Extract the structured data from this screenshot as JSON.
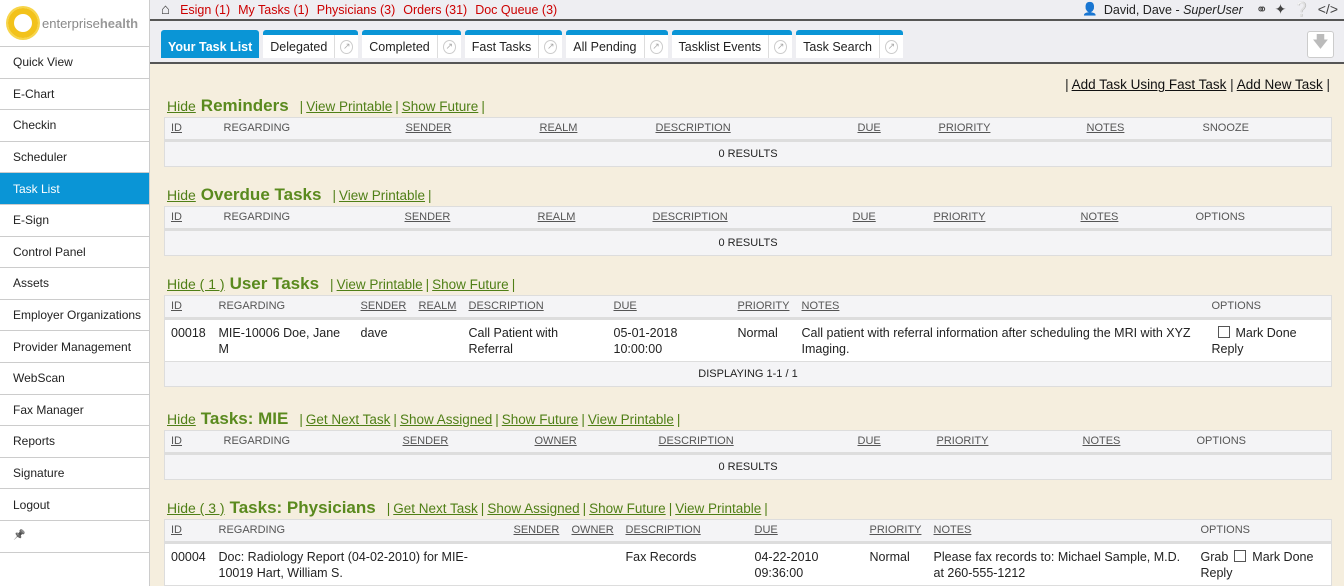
{
  "brand": {
    "name_light": "enterprise",
    "name_bold": "health"
  },
  "sidebar": {
    "items": [
      {
        "label": "Quick View"
      },
      {
        "label": "E-Chart"
      },
      {
        "label": "Checkin"
      },
      {
        "label": "Scheduler"
      },
      {
        "label": "Task List",
        "active": true
      },
      {
        "label": "E-Sign"
      },
      {
        "label": "Control Panel"
      },
      {
        "label": "Assets"
      },
      {
        "label": "Employer Organizations"
      },
      {
        "label": "Provider Management"
      },
      {
        "label": "WebScan"
      },
      {
        "label": "Fax Manager"
      },
      {
        "label": "Reports"
      },
      {
        "label": "Signature"
      },
      {
        "label": "Logout"
      },
      {
        "label": "",
        "icon": "pin-icon"
      }
    ]
  },
  "topbar": {
    "queues": [
      {
        "label": "Esign",
        "count": "(1)"
      },
      {
        "label": "My Tasks",
        "count": "(1)"
      },
      {
        "label": "Physicians",
        "count": "(3)"
      },
      {
        "label": "Orders",
        "count": "(31)"
      },
      {
        "label": "Doc Queue",
        "count": "(3)"
      }
    ],
    "user": "David, Dave",
    "role": "SuperUser",
    "icons": [
      "link-icon",
      "magic-wand-icon",
      "help-icon",
      "code-icon"
    ]
  },
  "tabs": [
    {
      "label": "Your Task List",
      "active": true
    },
    {
      "label": "Delegated"
    },
    {
      "label": "Completed"
    },
    {
      "label": "Fast Tasks"
    },
    {
      "label": "All Pending"
    },
    {
      "label": "Tasklist Events"
    },
    {
      "label": "Task Search"
    }
  ],
  "toplinks": [
    "Add Task Using Fast Task",
    "Add New Task"
  ],
  "colors": {
    "accent": "#0a95d6",
    "title_green": "#5a8a1e",
    "count_red": "#cc0000"
  },
  "sections": [
    {
      "hide": "Hide",
      "title": "Reminders",
      "links": [
        "View Printable",
        "Show Future"
      ],
      "columns": [
        [
          "ID",
          1
        ],
        [
          "REGARDING",
          0
        ],
        [
          "SENDER",
          1
        ],
        [
          "REALM",
          1
        ],
        [
          "DESCRIPTION",
          1
        ],
        [
          "DUE",
          1
        ],
        [
          "PRIORITY",
          1
        ],
        [
          "NOTES",
          1
        ],
        [
          "SNOOZE",
          0
        ]
      ],
      "rows": [],
      "footer": "0 RESULTS"
    },
    {
      "hide": "Hide",
      "title": "Overdue Tasks",
      "links": [
        "View Printable"
      ],
      "columns": [
        [
          "ID",
          1
        ],
        [
          "REGARDING",
          0
        ],
        [
          "SENDER",
          1
        ],
        [
          "REALM",
          1
        ],
        [
          "DESCRIPTION",
          1
        ],
        [
          "DUE",
          1
        ],
        [
          "PRIORITY",
          1
        ],
        [
          "NOTES",
          1
        ],
        [
          "OPTIONS",
          0
        ]
      ],
      "rows": [],
      "footer": "0 RESULTS"
    },
    {
      "hide": "Hide ( 1 )",
      "title": "User Tasks",
      "links": [
        "View Printable",
        "Show Future"
      ],
      "columns": [
        [
          "ID",
          1
        ],
        [
          "REGARDING",
          0
        ],
        [
          "SENDER",
          1
        ],
        [
          "REALM",
          1
        ],
        [
          "DESCRIPTION",
          1
        ],
        [
          "DUE",
          1
        ],
        [
          "PRIORITY",
          1
        ],
        [
          "NOTES",
          1
        ],
        [
          "OPTIONS",
          0
        ]
      ],
      "rows": [
        {
          "cells": [
            "00018",
            "MIE-10006 Doe, Jane M",
            "dave",
            "",
            "Call Patient with Referral",
            "05-01-2018 10:00:00",
            "Normal",
            "Call patient with referral information after scheduling the MRI with XYZ Imaging."
          ],
          "options": {
            "grab": "",
            "mark_done": "Mark Done",
            "reply": "Reply"
          }
        }
      ],
      "footer": "DISPLAYING 1-1 / 1"
    },
    {
      "hide": "Hide",
      "title": "Tasks: MIE",
      "links": [
        "Get Next Task",
        "Show Assigned",
        "Show Future",
        "View Printable"
      ],
      "columns": [
        [
          "ID",
          1
        ],
        [
          "REGARDING",
          0
        ],
        [
          "SENDER",
          1
        ],
        [
          "OWNER",
          1
        ],
        [
          "DESCRIPTION",
          1
        ],
        [
          "DUE",
          1
        ],
        [
          "PRIORITY",
          1
        ],
        [
          "NOTES",
          1
        ],
        [
          "OPTIONS",
          0
        ]
      ],
      "rows": [],
      "footer": "0 RESULTS"
    },
    {
      "hide": "Hide ( 3 )",
      "title": "Tasks: Physicians",
      "links": [
        "Get Next Task",
        "Show Assigned",
        "Show Future",
        "View Printable"
      ],
      "columns": [
        [
          "ID",
          1
        ],
        [
          "REGARDING",
          0
        ],
        [
          "SENDER",
          1
        ],
        [
          "OWNER",
          1
        ],
        [
          "DESCRIPTION",
          1
        ],
        [
          "DUE",
          1
        ],
        [
          "PRIORITY",
          1
        ],
        [
          "NOTES",
          1
        ],
        [
          "OPTIONS",
          0
        ]
      ],
      "rows": [
        {
          "cells": [
            "00004",
            "Doc: Radiology Report (04-02-2010) for MIE-10019 Hart, William S.",
            "",
            "",
            "Fax Records",
            "04-22-2010 09:36:00",
            "Normal",
            "Please fax records to: Michael Sample, M.D. at 260-555-1212"
          ],
          "options": {
            "grab": "Grab",
            "mark_done": "Mark Done",
            "reply": "Reply"
          }
        }
      ],
      "footer": ""
    }
  ]
}
